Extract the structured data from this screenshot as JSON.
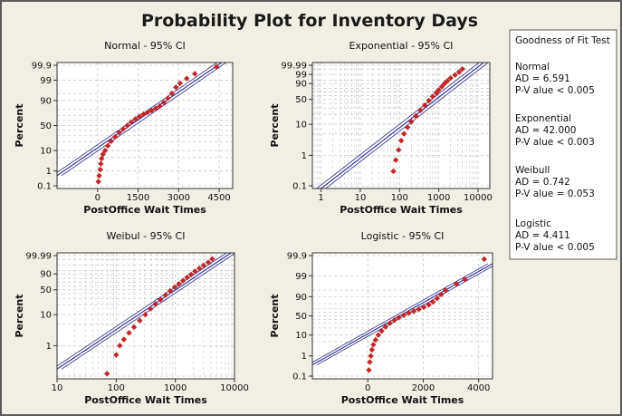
{
  "figure": {
    "title": "Probability Plot for Inventory Days"
  },
  "legend": {
    "title": "Goodness of Fit Test",
    "entries": [
      {
        "name": "Normal",
        "ad": "AD = 6.591",
        "p": "P-V alue < 0.005"
      },
      {
        "name": "Exponential",
        "ad": "AD = 42.000",
        "p": "P-V alue < 0.003"
      },
      {
        "name": "Weibull",
        "ad": "AD = 0.742",
        "p": "P-V alue = 0.053"
      },
      {
        "name": "Logistic",
        "ad": "AD = 4.411",
        "p": "P-V alue < 0.005"
      }
    ]
  },
  "colors": {
    "points": "#c0282a",
    "fit_line": "#2b2b8c",
    "grid": "#c8c8c8",
    "panel_bg": "#ffffff",
    "frame_bg": "#f1efe4"
  },
  "chart_data": [
    {
      "type": "scatter",
      "title": "Normal - 95% CI",
      "xlabel": "PostOffice Wait Times",
      "ylabel": "Percent",
      "x_scale": "linear",
      "y_scale": "normal-probability",
      "xlim": [
        -1500,
        5000
      ],
      "ylim": [
        0.1,
        99.9
      ],
      "x_ticks": [
        0,
        1500,
        3000,
        4500
      ],
      "x_tick_labels": [
        "0",
        "1500",
        "3000",
        "4500"
      ],
      "y_ticks": [
        0.1,
        1,
        10,
        50,
        90,
        99,
        99.9
      ],
      "y_tick_labels": [
        "0.1",
        "1",
        "10",
        "50",
        "90",
        "99",
        "99.9"
      ],
      "fit_line": {
        "mean": 1200,
        "sd": 1050
      },
      "points": [
        [
          30,
          0.2
        ],
        [
          60,
          0.5
        ],
        [
          100,
          1.2
        ],
        [
          120,
          2.5
        ],
        [
          150,
          4.5
        ],
        [
          200,
          7
        ],
        [
          280,
          10
        ],
        [
          380,
          15
        ],
        [
          500,
          21
        ],
        [
          650,
          28
        ],
        [
          800,
          36
        ],
        [
          950,
          43
        ],
        [
          1100,
          50
        ],
        [
          1250,
          57
        ],
        [
          1400,
          63
        ],
        [
          1550,
          68
        ],
        [
          1700,
          72
        ],
        [
          1850,
          75
        ],
        [
          2000,
          78
        ],
        [
          2150,
          81
        ],
        [
          2300,
          84
        ],
        [
          2450,
          88
        ],
        [
          2600,
          92
        ],
        [
          2750,
          95
        ],
        [
          2900,
          97.5
        ],
        [
          3050,
          98.5
        ],
        [
          3300,
          99.2
        ],
        [
          3600,
          99.6
        ],
        [
          4400,
          99.87
        ]
      ]
    },
    {
      "type": "scatter",
      "title": "Exponential - 95% CI",
      "xlabel": "PostOffice Wait Times",
      "ylabel": "Percent",
      "x_scale": "log",
      "y_scale": "exponential-probability",
      "xlim": [
        0.6,
        20000
      ],
      "ylim": [
        0.1,
        99.99
      ],
      "x_ticks": [
        1,
        10,
        100,
        1000,
        10000
      ],
      "x_tick_labels": [
        "1",
        "10",
        "100",
        "1000",
        "10000"
      ],
      "y_ticks": [
        0.1,
        1,
        10,
        50,
        90,
        99,
        99.99
      ],
      "y_tick_labels": [
        "0.1",
        "1",
        "10",
        "50",
        "90",
        "99",
        "99.99"
      ],
      "fit_line": {
        "mean": 1230
      },
      "points": [
        [
          70,
          0.3
        ],
        [
          80,
          0.7
        ],
        [
          95,
          1.5
        ],
        [
          110,
          3
        ],
        [
          130,
          5
        ],
        [
          160,
          8
        ],
        [
          200,
          12
        ],
        [
          260,
          18
        ],
        [
          340,
          26
        ],
        [
          440,
          36
        ],
        [
          560,
          47
        ],
        [
          700,
          58
        ],
        [
          860,
          68
        ],
        [
          1000,
          76
        ],
        [
          1200,
          84
        ],
        [
          1400,
          90
        ],
        [
          1650,
          94
        ],
        [
          2000,
          97
        ],
        [
          2600,
          98.8
        ],
        [
          3300,
          99.6
        ],
        [
          4000,
          99.9
        ]
      ]
    },
    {
      "type": "scatter",
      "title": "Weibul - 95% CI",
      "xlabel": "PostOffice Wait Times",
      "ylabel": "Percent",
      "x_scale": "log",
      "y_scale": "weibull-probability",
      "xlim": [
        10,
        10000
      ],
      "ylim": [
        0.1,
        99.99
      ],
      "x_ticks": [
        10,
        100,
        1000,
        10000
      ],
      "x_tick_labels": [
        "10",
        "100",
        "1000",
        "10000"
      ],
      "y_ticks": [
        1,
        10,
        50,
        90,
        99.99
      ],
      "y_tick_labels": [
        "1",
        "10",
        "50",
        "90",
        "99.99"
      ],
      "fit_line": {
        "shape": 1.3,
        "scale": 1350
      },
      "points": [
        [
          70,
          0.12
        ],
        [
          100,
          0.5
        ],
        [
          115,
          1
        ],
        [
          135,
          1.6
        ],
        [
          165,
          2.6
        ],
        [
          200,
          4
        ],
        [
          250,
          6.5
        ],
        [
          310,
          10
        ],
        [
          380,
          15
        ],
        [
          460,
          21
        ],
        [
          560,
          28
        ],
        [
          680,
          37
        ],
        [
          820,
          47
        ],
        [
          980,
          57
        ],
        [
          1150,
          66
        ],
        [
          1350,
          75
        ],
        [
          1580,
          83
        ],
        [
          1850,
          89
        ],
        [
          2150,
          94
        ],
        [
          2550,
          97
        ],
        [
          3000,
          98.8
        ],
        [
          3600,
          99.6
        ],
        [
          4200,
          99.92
        ]
      ]
    },
    {
      "type": "scatter",
      "title": "Logistic - 95% CI",
      "xlabel": "PostOffice Wait Times",
      "ylabel": "Percent",
      "x_scale": "linear",
      "y_scale": "logistic-probability",
      "xlim": [
        -2000,
        4500
      ],
      "ylim": [
        0.1,
        99.9
      ],
      "x_ticks": [
        0,
        2000,
        4000
      ],
      "x_tick_labels": [
        "0",
        "2000",
        "4000"
      ],
      "y_ticks": [
        0.1,
        1,
        10,
        50,
        90,
        99,
        99.9
      ],
      "y_tick_labels": [
        "0.1",
        "1",
        "10",
        "50",
        "90",
        "99",
        "99.9"
      ],
      "fit_line": {
        "location": 1150,
        "scale": 560
      },
      "points": [
        [
          40,
          0.2
        ],
        [
          70,
          0.5
        ],
        [
          110,
          1
        ],
        [
          150,
          2
        ],
        [
          200,
          3.5
        ],
        [
          280,
          6
        ],
        [
          380,
          10
        ],
        [
          500,
          15
        ],
        [
          640,
          22
        ],
        [
          800,
          30
        ],
        [
          960,
          38
        ],
        [
          1120,
          45
        ],
        [
          1300,
          52
        ],
        [
          1480,
          58
        ],
        [
          1660,
          63
        ],
        [
          1840,
          68
        ],
        [
          2020,
          73
        ],
        [
          2200,
          78
        ],
        [
          2350,
          83
        ],
        [
          2500,
          88
        ],
        [
          2650,
          92
        ],
        [
          2800,
          95
        ],
        [
          3200,
          97.5
        ],
        [
          3500,
          98.5
        ],
        [
          4200,
          99.85
        ]
      ]
    }
  ]
}
